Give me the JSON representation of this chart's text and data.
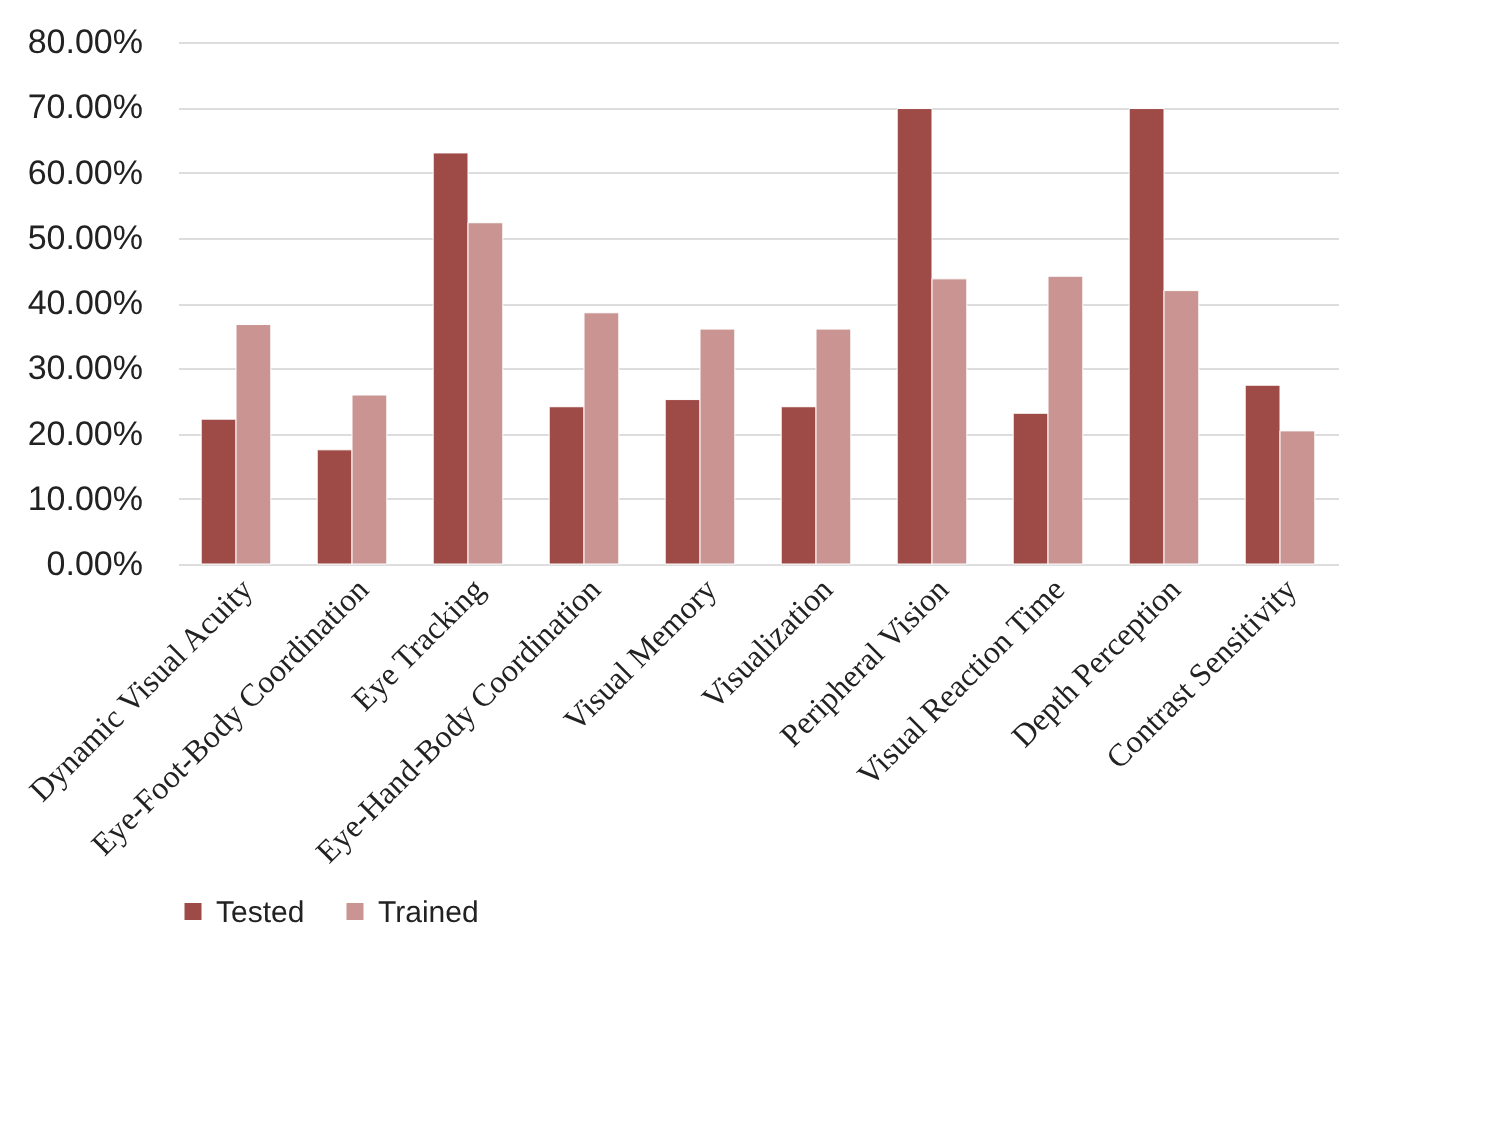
{
  "chart_data": {
    "type": "bar",
    "categories": [
      "Dynamic Visual Acuity",
      "Eye-Foot-Body Coordination",
      "Eye Tracking",
      "Eye-Hand-Body Coordination",
      "Visual Memory",
      "Visualization",
      "Peripheral Vision",
      "Visual Reaction Time",
      "Depth Perception",
      "Contrast Sensitivity"
    ],
    "series": [
      {
        "name": "Tested",
        "color": "#9e4a46",
        "values": [
          22.2,
          17.5,
          63.0,
          24.1,
          25.2,
          24.1,
          69.8,
          23.1,
          69.8,
          27.4
        ]
      },
      {
        "name": "Trained",
        "color": "#c99491",
        "values": [
          36.7,
          25.9,
          52.3,
          38.5,
          36.0,
          36.0,
          43.7,
          44.1,
          41.9,
          20.4
        ]
      }
    ],
    "ylim": [
      0,
      80
    ],
    "yticks": [
      {
        "value": 0,
        "label": "0.00%"
      },
      {
        "value": 10,
        "label": "10.00%"
      },
      {
        "value": 20,
        "label": "20.00%"
      },
      {
        "value": 30,
        "label": "30.00%"
      },
      {
        "value": 40,
        "label": "40.00%"
      },
      {
        "value": 50,
        "label": "50.00%"
      },
      {
        "value": 60,
        "label": "60.00%"
      },
      {
        "value": 70,
        "label": "70.00%"
      },
      {
        "value": 80,
        "label": "80.00%"
      }
    ],
    "grid": "y",
    "legend": "bottom"
  }
}
